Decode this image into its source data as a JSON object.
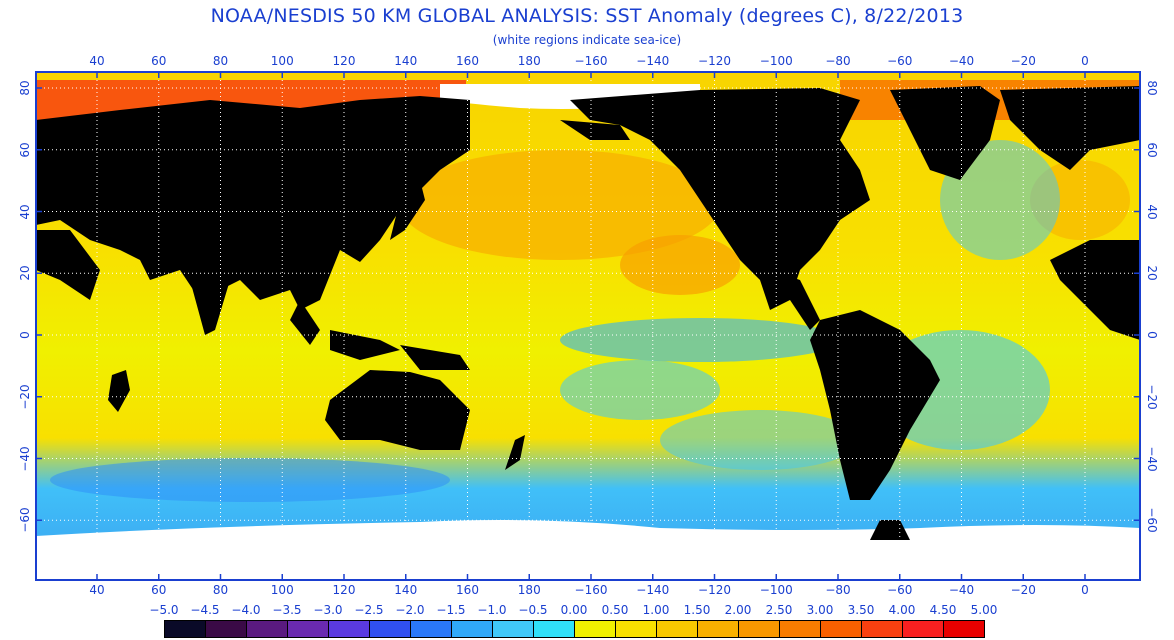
{
  "title": "NOAA/NESDIS 50 KM GLOBAL ANALYSIS: SST Anomaly (degrees C), 8/22/2013",
  "subtitle": "(white regions indicate sea-ice)",
  "colors": {
    "axis": "#1a3fd0",
    "land": "#000000",
    "ice": "#ffffff",
    "grid": "#ffffff"
  },
  "longitude_labels": [
    "40",
    "60",
    "80",
    "100",
    "120",
    "140",
    "160",
    "180",
    "−160",
    "−140",
    "−120",
    "−100",
    "−80",
    "−60",
    "−40",
    "−20",
    "0"
  ],
  "latitude_labels": [
    "80",
    "60",
    "40",
    "20",
    "0",
    "−20",
    "−40",
    "−60"
  ],
  "legend": {
    "labels": [
      "−5.0",
      "−4.5",
      "−4.0",
      "−3.5",
      "−3.0",
      "−2.5",
      "−2.0",
      "−1.5",
      "−1.0",
      "−0.5",
      "0.00",
      "0.50",
      "1.00",
      "1.50",
      "2.00",
      "2.50",
      "3.00",
      "3.50",
      "4.00",
      "4.50",
      "5.00"
    ],
    "colors": [
      "#0a0a28",
      "#3a0a46",
      "#5a1a80",
      "#6a2ab0",
      "#5a3ae0",
      "#3050f0",
      "#2a78f8",
      "#30a8f8",
      "#40c8f8",
      "#30e0f8",
      "#f0f000",
      "#f8e000",
      "#f8c800",
      "#f8b000",
      "#f89800",
      "#f87c00",
      "#f86000",
      "#f84010",
      "#f82020",
      "#e80000"
    ]
  }
}
